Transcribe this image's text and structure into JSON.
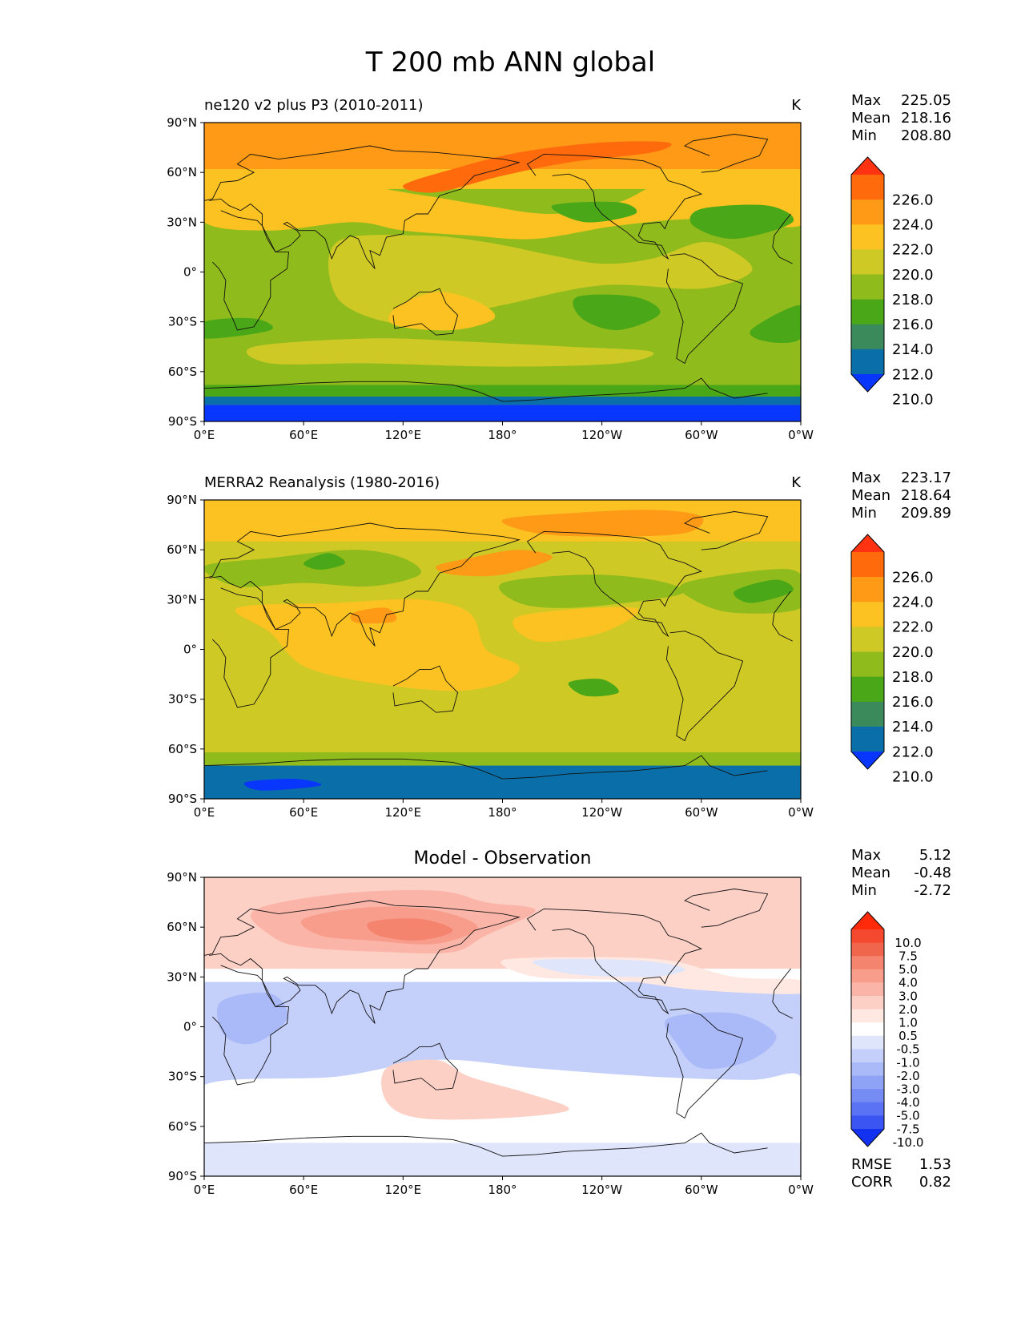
{
  "figure_title": "T 200 mb ANN global",
  "axes": {
    "lat_ticks": [
      "90°N",
      "60°N",
      "30°N",
      "0°",
      "30°S",
      "60°S",
      "90°S"
    ],
    "lon_ticks": [
      "0°E",
      "60°E",
      "120°E",
      "180°",
      "120°W",
      "60°W",
      "0°W"
    ]
  },
  "panels": [
    {
      "id": "test",
      "left_title": "ne120 v2 plus P3 (2010-2011)",
      "right_title": "K",
      "center_title": "",
      "stats": [
        {
          "label": "Max",
          "value": "225.05"
        },
        {
          "label": "Mean",
          "value": "218.16"
        },
        {
          "label": "Min",
          "value": "208.80"
        }
      ],
      "extra_stats": [],
      "colorbar": {
        "labels": [
          "226.0",
          "224.0",
          "222.0",
          "220.0",
          "218.0",
          "216.0",
          "214.0",
          "212.0",
          "210.0"
        ],
        "colors": [
          "#ff3311",
          "#ff6a0d",
          "#fe9a16",
          "#fcc221",
          "#cfc926",
          "#8fbb1c",
          "#4aa717",
          "#3a8a5c",
          "#0a6fa8",
          "#0836fd"
        ]
      }
    },
    {
      "id": "ref",
      "left_title": "MERRA2 Reanalysis (1980-2016)",
      "right_title": "K",
      "center_title": "",
      "stats": [
        {
          "label": "Max",
          "value": "223.17"
        },
        {
          "label": "Mean",
          "value": "218.64"
        },
        {
          "label": "Min",
          "value": "209.89"
        }
      ],
      "extra_stats": [],
      "colorbar": {
        "labels": [
          "226.0",
          "224.0",
          "222.0",
          "220.0",
          "218.0",
          "216.0",
          "214.0",
          "212.0",
          "210.0"
        ],
        "colors": [
          "#ff3311",
          "#ff6a0d",
          "#fe9a16",
          "#fcc221",
          "#cfc926",
          "#8fbb1c",
          "#4aa717",
          "#3a8a5c",
          "#0a6fa8",
          "#0836fd"
        ]
      }
    },
    {
      "id": "diff",
      "left_title": "",
      "right_title": "",
      "center_title": "Model - Observation",
      "stats": [
        {
          "label": "Max",
          "value": "5.12"
        },
        {
          "label": "Mean",
          "value": "-0.48"
        },
        {
          "label": "Min",
          "value": "-2.72"
        }
      ],
      "extra_stats": [
        {
          "label": "RMSE",
          "value": "1.53"
        },
        {
          "label": "CORR",
          "value": "0.82"
        }
      ],
      "colorbar": {
        "labels": [
          "10.0",
          "7.5",
          "5.0",
          "4.0",
          "3.0",
          "2.0",
          "1.0",
          "0.5",
          "-0.5",
          "-1.0",
          "-2.0",
          "-3.0",
          "-4.0",
          "-5.0",
          "-7.5",
          "-10.0"
        ],
        "colors": [
          "#ff2a0a",
          "#f5492f",
          "#f0664c",
          "#f5846f",
          "#f89d8c",
          "#fbb5a8",
          "#fdd0c6",
          "#ffe7e2",
          "#ffffff",
          "#dfe5fb",
          "#c4cffa",
          "#aab9f8",
          "#8fa3f6",
          "#758cf5",
          "#5a72f4",
          "#3a55f2",
          "#1232f0"
        ]
      }
    }
  ]
}
